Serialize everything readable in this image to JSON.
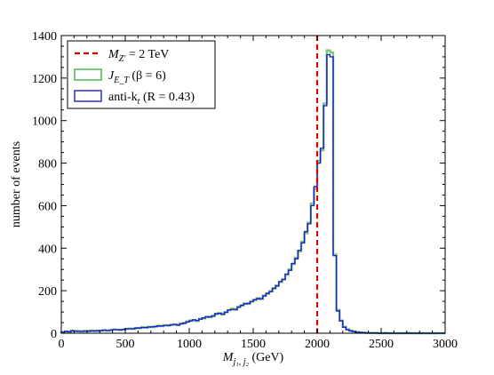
{
  "chart_data": {
    "type": "histogram",
    "xlabel": "M_{j1,j2} (GeV)",
    "ylabel": "number of events",
    "xlim": [
      0,
      3000
    ],
    "ylim": [
      0,
      1400
    ],
    "xticks": [
      "0",
      "500",
      "1000",
      "1500",
      "2000",
      "2500",
      "3000"
    ],
    "yticks": [
      "0",
      "200",
      "400",
      "600",
      "800",
      "1000",
      "1200",
      "1400"
    ],
    "bin_width": 25,
    "bin_start": 0,
    "vline": {
      "x": 2000,
      "label": "M_{Z'} = 2 TeV",
      "color": "#e00000"
    },
    "legend": {
      "position": "top-left",
      "items": [
        {
          "key": "vline",
          "label_main": "M",
          "label_sub": "Z'",
          "label_rest": " = 2 TeV",
          "color": "#e00000"
        },
        {
          "key": "jet",
          "label_main": "J",
          "label_sub": "E_T",
          "label_rest": " (β = 6)",
          "color": "#7bc67b"
        },
        {
          "key": "antikt",
          "label_main": "anti-k",
          "label_sub": "t",
          "label_rest": " (R = 0.43)",
          "color": "#1f1fcf"
        }
      ]
    },
    "series": [
      {
        "name": "J_{E_T} (β = 6)",
        "color": "#7bc67b",
        "values": [
          5,
          8,
          6,
          12,
          9,
          10,
          8,
          11,
          9,
          12,
          10,
          11,
          13,
          14,
          12,
          15,
          18,
          16,
          15,
          17,
          20,
          22,
          20,
          25,
          24,
          28,
          26,
          30,
          29,
          32,
          35,
          33,
          38,
          36,
          40,
          42,
          38,
          45,
          48,
          55,
          60,
          62,
          58,
          68,
          70,
          78,
          75,
          82,
          90,
          95,
          88,
          100,
          108,
          115,
          110,
          125,
          130,
          140,
          138,
          150,
          155,
          165,
          160,
          178,
          185,
          198,
          210,
          225,
          240,
          255,
          275,
          300,
          325,
          355,
          385,
          430,
          470,
          520,
          610,
          680,
          810,
          860,
          1080,
          1330,
          1320,
          370,
          110,
          60,
          30,
          18,
          12,
          8,
          6,
          4,
          3,
          2,
          1,
          1,
          1,
          0,
          0,
          1,
          0,
          0,
          0,
          0,
          0,
          0,
          1,
          0,
          0,
          0,
          0,
          0,
          0,
          0,
          0,
          0,
          0,
          0
        ]
      },
      {
        "name": "anti-k_t (R = 0.43)",
        "color": "#1f1fcf",
        "values": [
          4,
          9,
          7,
          11,
          10,
          9,
          9,
          10,
          10,
          11,
          11,
          12,
          12,
          15,
          13,
          14,
          17,
          17,
          16,
          18,
          21,
          21,
          21,
          24,
          25,
          27,
          27,
          29,
          30,
          31,
          34,
          34,
          37,
          37,
          39,
          41,
          39,
          44,
          47,
          53,
          58,
          63,
          60,
          66,
          72,
          76,
          77,
          80,
          92,
          93,
          90,
          98,
          110,
          112,
          112,
          122,
          132,
          138,
          140,
          148,
          158,
          162,
          163,
          175,
          188,
          195,
          212,
          222,
          243,
          252,
          278,
          296,
          328,
          350,
          390,
          425,
          478,
          515,
          600,
          690,
          800,
          870,
          1070,
          1310,
          1300,
          365,
          105,
          58,
          28,
          17,
          11,
          8,
          5,
          4,
          3,
          2,
          2,
          1,
          1,
          0,
          0,
          1,
          0,
          0,
          0,
          0,
          0,
          0,
          0,
          0,
          0,
          0,
          0,
          0,
          0,
          0,
          0,
          0,
          0,
          0
        ]
      }
    ]
  }
}
